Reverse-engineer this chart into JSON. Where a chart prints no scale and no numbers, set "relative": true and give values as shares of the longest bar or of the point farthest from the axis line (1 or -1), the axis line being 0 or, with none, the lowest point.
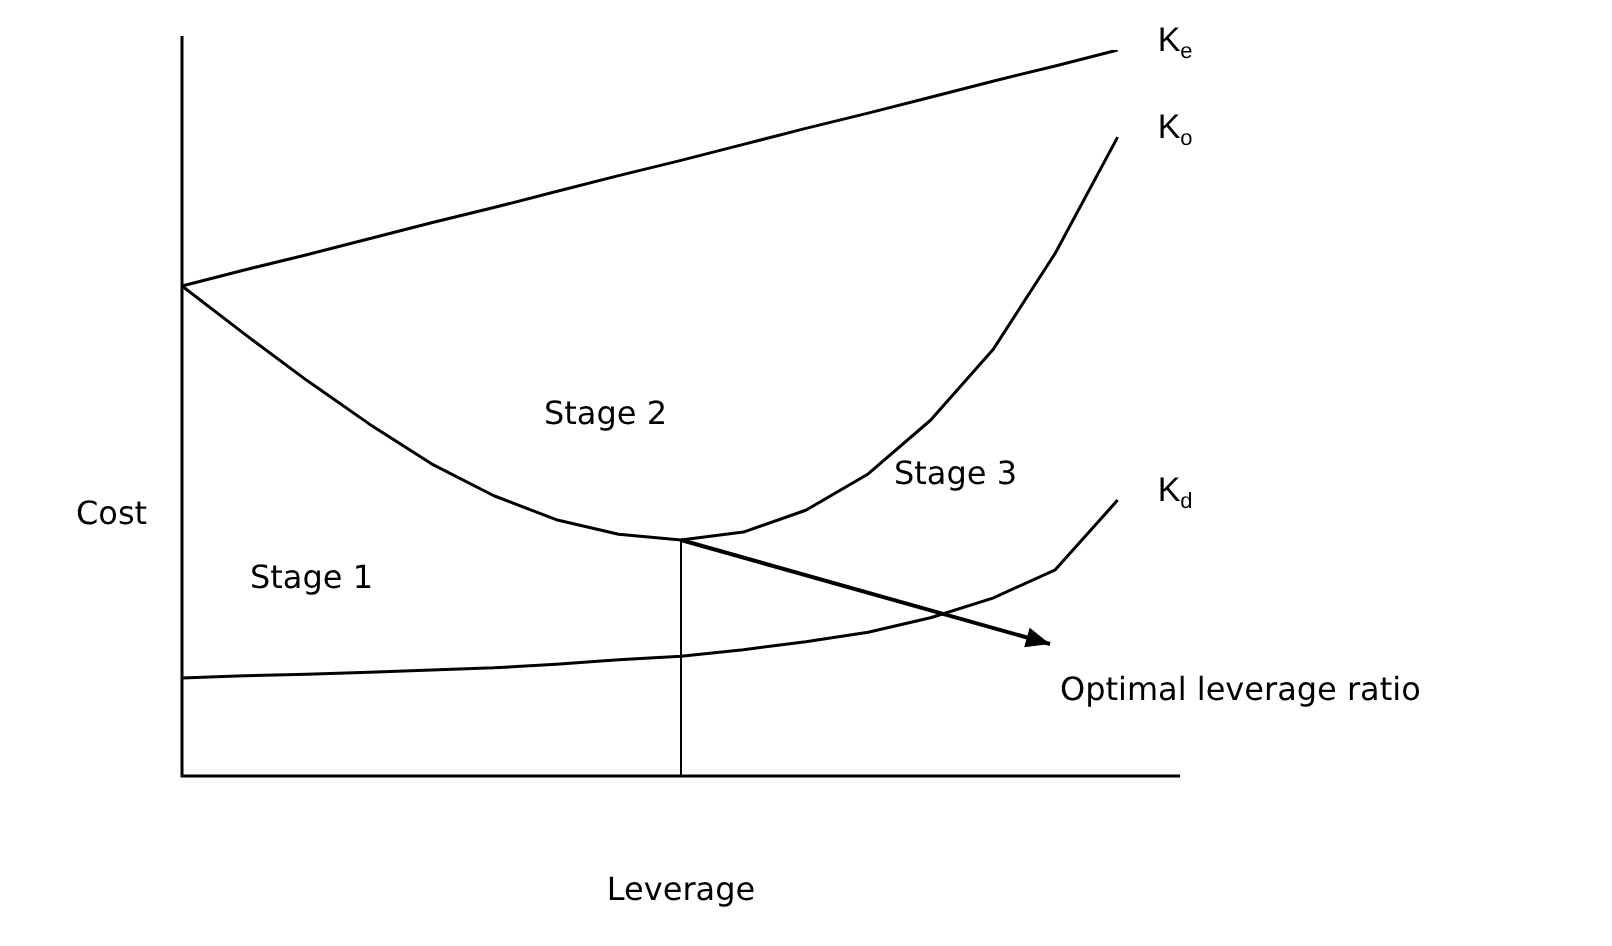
{
  "chart_data": {
    "type": "line",
    "relative": true,
    "xlabel": "Leverage",
    "ylabel": "Cost",
    "tick_labels": false,
    "marker": "none",
    "legend": false,
    "categories": [
      null,
      null,
      null,
      null,
      null,
      null,
      null,
      null,
      null,
      null,
      null,
      null,
      null,
      null,
      null,
      null,
      null
    ],
    "series": [
      {
        "name": "K$_{e}$",
        "color": "#000000",
        "values": [
          0.675,
          0.697,
          0.718,
          0.74,
          0.762,
          0.783,
          0.805,
          0.827,
          0.848,
          0.87,
          0.892,
          0.913,
          0.935,
          0.957,
          0.978,
          1,
          null
        ]
      },
      {
        "name": "K$_{o}$",
        "color": "#000000",
        "values": [
          0.675,
          0.609,
          0.545,
          0.485,
          0.43,
          0.386,
          0.353,
          0.333,
          0.325,
          0.336,
          0.366,
          0.416,
          0.49,
          0.587,
          0.72,
          0.88,
          null
        ]
      },
      {
        "name": "K$_{d}$",
        "color": "#000000",
        "values": [
          0.135,
          0.138,
          0.14,
          0.143,
          0.146,
          0.149,
          0.154,
          0.16,
          0.165,
          0.174,
          0.185,
          0.198,
          0.218,
          0.245,
          0.284,
          0.38,
          null
        ]
      }
    ],
    "annotations": [
      "Stage 1",
      "Stage 2",
      "Stage 3",
      "Optimal leverage ratio"
    ]
  }
}
